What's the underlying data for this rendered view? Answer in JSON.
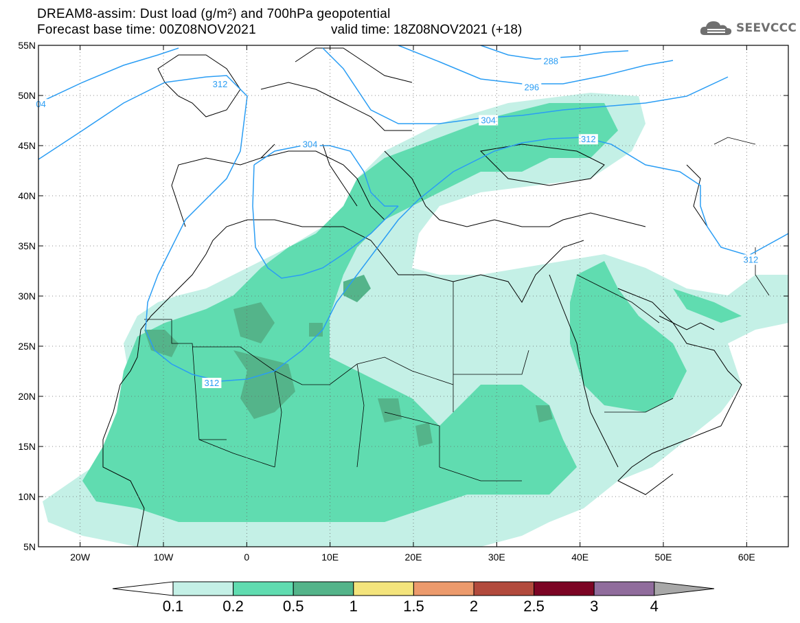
{
  "title": {
    "line1": "DREAM8-assim: Dust load (g/m²) and 700hPa geopotential",
    "line2": "Forecast base time: 00Z08NOV2021",
    "valid": "valid time: 18Z08NOV2021 (+18)"
  },
  "logo": {
    "text": "SEEVCCC",
    "icon": "cloud-logo-icon"
  },
  "map": {
    "lon_range": [
      -25,
      65
    ],
    "lat_range": [
      5,
      55
    ],
    "lon_ticks": [
      {
        "value": -20,
        "label": "20W"
      },
      {
        "value": -10,
        "label": "10W"
      },
      {
        "value": 0,
        "label": "0"
      },
      {
        "value": 10,
        "label": "10E"
      },
      {
        "value": 20,
        "label": "20E"
      },
      {
        "value": 30,
        "label": "30E"
      },
      {
        "value": 40,
        "label": "40E"
      },
      {
        "value": 50,
        "label": "50E"
      },
      {
        "value": 60,
        "label": "60E"
      }
    ],
    "lat_ticks": [
      {
        "value": 55,
        "label": "55N"
      },
      {
        "value": 50,
        "label": "50N"
      },
      {
        "value": 45,
        "label": "45N"
      },
      {
        "value": 40,
        "label": "40N"
      },
      {
        "value": 35,
        "label": "35N"
      },
      {
        "value": 30,
        "label": "30N"
      },
      {
        "value": 25,
        "label": "25N"
      },
      {
        "value": 20,
        "label": "20N"
      },
      {
        "value": 15,
        "label": "15N"
      },
      {
        "value": 10,
        "label": "10N"
      },
      {
        "value": 5,
        "label": "5N"
      }
    ],
    "contour_labels": [
      {
        "text": "288",
        "lon": 36.5,
        "lat": 53.4
      },
      {
        "text": "296",
        "lon": 34.2,
        "lat": 50.8
      },
      {
        "text": "304",
        "lon": 29.0,
        "lat": 47.5
      },
      {
        "text": "304",
        "lon": 7.6,
        "lat": 45.1
      },
      {
        "text": "312",
        "lon": 41.0,
        "lat": 45.6
      },
      {
        "text": "312",
        "lon": -3.2,
        "lat": 51.1
      },
      {
        "text": "312",
        "lon": -4.2,
        "lat": 21.3
      },
      {
        "text": "312",
        "lon": 60.5,
        "lat": 33.6
      },
      {
        "text": "04",
        "lon": -24.7,
        "lat": 49.1
      }
    ]
  },
  "colorbar": {
    "colors": [
      "#c4f0e6",
      "#60dcb0",
      "#54b48a",
      "#f4e47c",
      "#ec9a6c",
      "#b24a3c",
      "#7c0424",
      "#906c9c"
    ],
    "labels": [
      "0.1",
      "0.2",
      "0.5",
      "1",
      "1.5",
      "2",
      "2.5",
      "3",
      "4"
    ],
    "under_color": "#ffffff",
    "over_color": "#a8a8a8"
  }
}
